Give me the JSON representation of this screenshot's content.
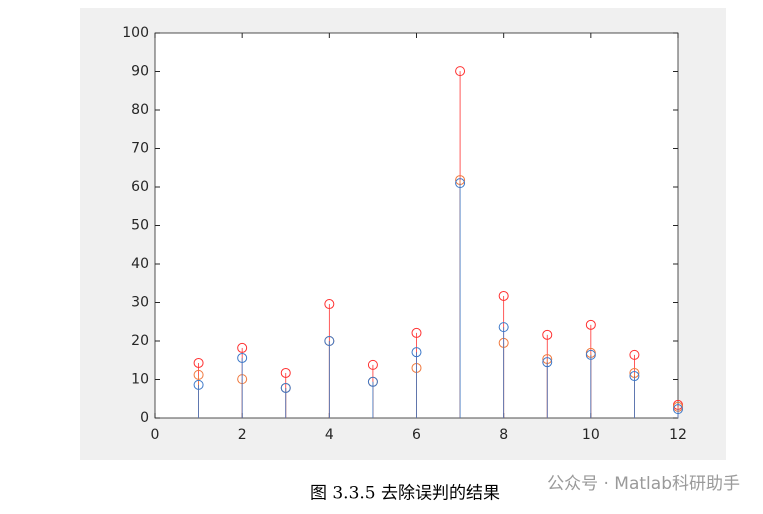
{
  "chart_data": {
    "type": "stem",
    "x": [
      1,
      2,
      3,
      4,
      5,
      6,
      7,
      8,
      9,
      10,
      11,
      12
    ],
    "series": [
      {
        "color": "#ff3030",
        "values": [
          14.3,
          18.2,
          11.7,
          29.6,
          13.8,
          22.1,
          90.1,
          31.7,
          21.6,
          24.2,
          16.4,
          3.4
        ]
      },
      {
        "color": "#f0783c",
        "values": [
          11.2,
          10.1,
          7.8,
          20,
          9.4,
          13,
          61.8,
          19.5,
          15.3,
          16.9,
          11.7,
          2.9
        ]
      },
      {
        "color": "#3c78c8",
        "values": [
          8.6,
          15.6,
          7.8,
          20,
          9.4,
          17.1,
          61,
          23.6,
          14.5,
          16.4,
          10.9,
          2.3
        ]
      }
    ],
    "xlim": [
      0,
      12
    ],
    "xticks": [
      0,
      2,
      4,
      6,
      8,
      10,
      12
    ],
    "ylim": [
      0,
      100
    ],
    "yticks": [
      0,
      10,
      20,
      30,
      40,
      50,
      60,
      70,
      80,
      90,
      100
    ],
    "caption": "图 3.3.5  去除误判的结果",
    "watermark": "公众号 · Matlab科研助手"
  }
}
